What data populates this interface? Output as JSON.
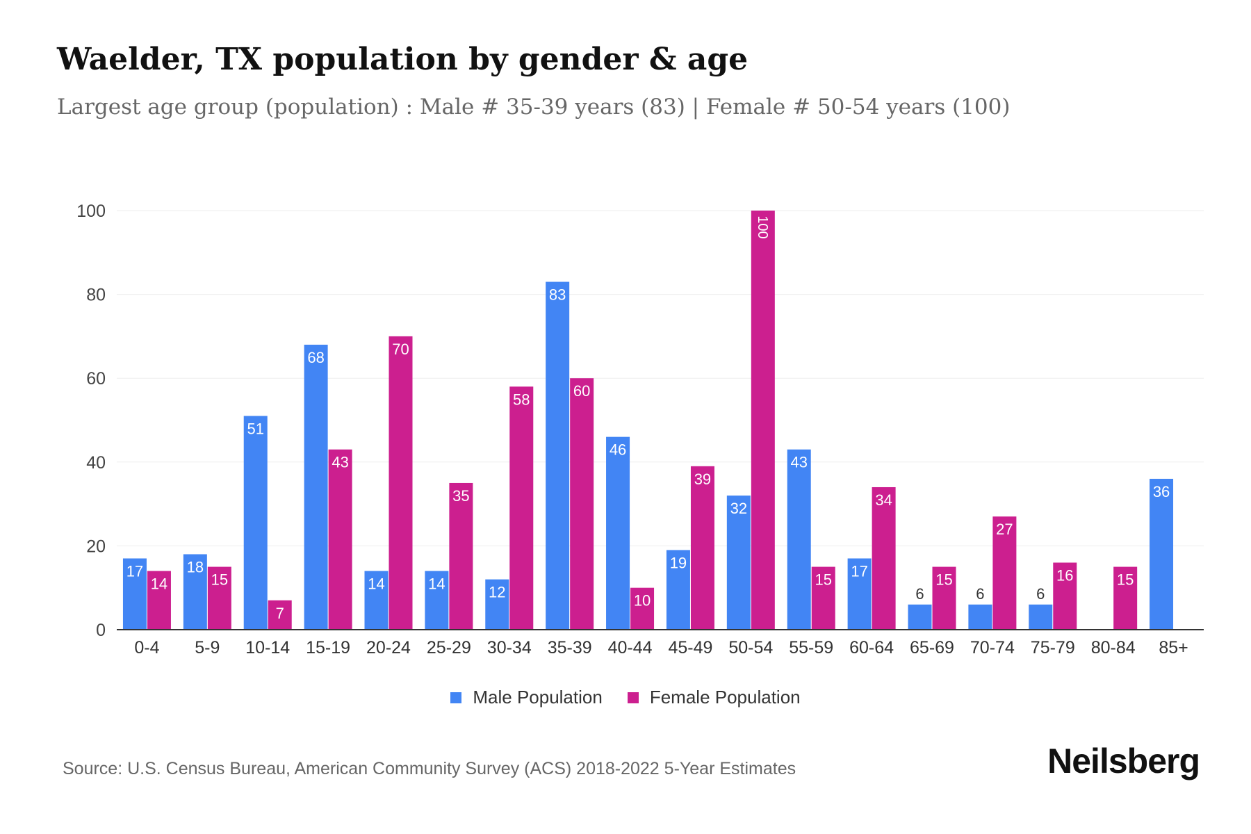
{
  "title": "Waelder, TX population by gender & age",
  "subtitle": "Largest age group (population) : Male # 35-39 years (83) | Female # 50-54 years (100)",
  "source": "Source: U.S. Census Bureau, American Community Survey (ACS) 2018-2022 5-Year Estimates",
  "logo": "Neilsberg",
  "chart_data": {
    "type": "bar",
    "categories": [
      "0-4",
      "5-9",
      "10-14",
      "15-19",
      "20-24",
      "25-29",
      "30-34",
      "35-39",
      "40-44",
      "45-49",
      "50-54",
      "55-59",
      "60-64",
      "65-69",
      "70-74",
      "75-79",
      "80-84",
      "85+"
    ],
    "series": [
      {
        "name": "Male Population",
        "color": "#4285f4",
        "values": [
          17,
          18,
          51,
          68,
          14,
          14,
          12,
          83,
          46,
          19,
          32,
          43,
          17,
          6,
          6,
          6,
          null,
          36
        ]
      },
      {
        "name": "Female Population",
        "color": "#cc1f8f",
        "values": [
          14,
          15,
          7,
          43,
          70,
          35,
          58,
          60,
          10,
          39,
          100,
          15,
          34,
          15,
          27,
          16,
          15,
          null
        ]
      }
    ],
    "ylim": [
      0,
      100
    ],
    "yticks": [
      0,
      20,
      40,
      60,
      80,
      100
    ],
    "grid": true,
    "legend": "bottom"
  }
}
